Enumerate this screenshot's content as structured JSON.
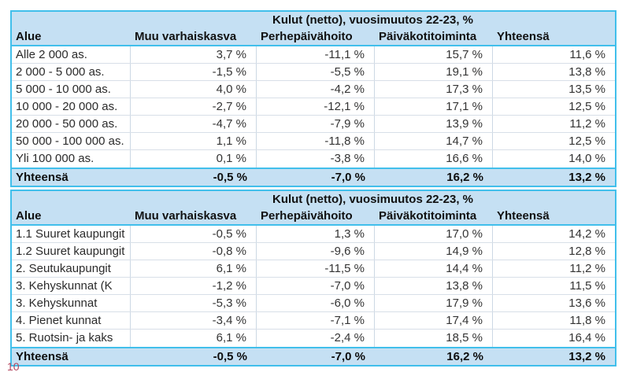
{
  "page": {
    "page_number": "10"
  },
  "colors": {
    "table_border_accent": "#41bfeb",
    "header_fill": "#c5e0f3",
    "row_divider": "#d8dfe8",
    "column_divider": "#ccd8e4",
    "page_number_color": "#b2455e"
  },
  "tables": [
    {
      "title": "Kulut (netto), vuosimuutos 22-23, %",
      "columns": [
        "Alue",
        "Muu varhaiskasva",
        "Perhepäivähoito",
        "Päiväkotitoiminta",
        "Yhteensä"
      ],
      "rows": [
        {
          "label": "Alle 2 000 as.",
          "values": [
            "3,7 %",
            "-11,1 %",
            "15,7 %",
            "11,6 %"
          ]
        },
        {
          "label": "2 000 - 5 000 as.",
          "values": [
            "-1,5 %",
            "-5,5 %",
            "19,1 %",
            "13,8 %"
          ]
        },
        {
          "label": "5 000 - 10 000 as.",
          "values": [
            "4,0 %",
            "-4,2 %",
            "17,3 %",
            "13,5 %"
          ]
        },
        {
          "label": "10 000 - 20 000 as.",
          "values": [
            "-2,7 %",
            "-12,1 %",
            "17,1 %",
            "12,5 %"
          ]
        },
        {
          "label": "20 000 - 50 000 as.",
          "values": [
            "-4,7 %",
            "-7,9 %",
            "13,9 %",
            "11,2 %"
          ]
        },
        {
          "label": "50 000 - 100 000 as.",
          "values": [
            "1,1 %",
            "-11,8 %",
            "14,7 %",
            "12,5 %"
          ]
        },
        {
          "label": "Yli 100 000 as.",
          "values": [
            "0,1 %",
            "-3,8 %",
            "16,6 %",
            "14,0 %"
          ]
        }
      ],
      "total": {
        "label": "Yhteensä",
        "values": [
          "-0,5 %",
          "-7,0 %",
          "16,2 %",
          "13,2 %"
        ]
      }
    },
    {
      "title": "Kulut (netto), vuosimuutos 22-23, %",
      "columns": [
        "Alue",
        "Muu varhaiskasva",
        "Perhepäivähoito",
        "Päiväkotitoiminta",
        "Yhteensä"
      ],
      "rows": [
        {
          "label": "1.1 Suuret kaupungit",
          "values": [
            "-0,5 %",
            "1,3 %",
            "17,0 %",
            "14,2 %"
          ]
        },
        {
          "label": "1.2 Suuret kaupungit",
          "values": [
            "-0,8 %",
            "-9,6 %",
            "14,9 %",
            "12,8 %"
          ]
        },
        {
          "label": "2. Seutukaupungit",
          "values": [
            "6,1 %",
            "-11,5 %",
            "14,4 %",
            "11,2 %"
          ]
        },
        {
          "label": "3. Kehyskunnat (K",
          "values": [
            "-1,2 %",
            "-7,0 %",
            "13,8 %",
            "11,5 %"
          ]
        },
        {
          "label": "3. Kehyskunnat",
          "values": [
            "-5,3 %",
            "-6,0 %",
            "17,9 %",
            "13,6 %"
          ]
        },
        {
          "label": "4. Pienet kunnat",
          "values": [
            "-3,4 %",
            "-7,1 %",
            "17,4 %",
            "11,8 %"
          ]
        },
        {
          "label": "5. Ruotsin- ja kaks",
          "values": [
            "6,1 %",
            "-2,4 %",
            "18,5 %",
            "16,4 %"
          ]
        }
      ],
      "total": {
        "label": "Yhteensä",
        "values": [
          "-0,5 %",
          "-7,0 %",
          "16,2 %",
          "13,2 %"
        ]
      }
    }
  ]
}
